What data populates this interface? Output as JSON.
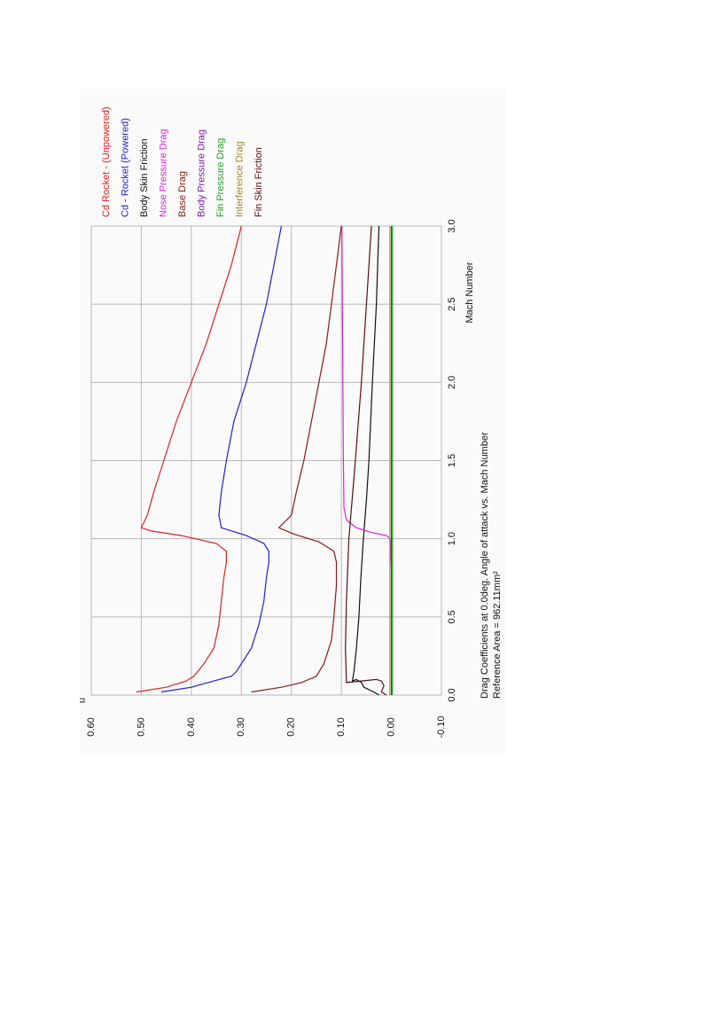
{
  "chart_data": {
    "type": "line",
    "title": "Drag Coefficients at 0.0deg. Angle of attack vs. Mach Number",
    "subtitle": "Reference Area =   962.11mm²",
    "xlabel": "Mach Number",
    "ylabel": "",
    "xlim": [
      0.0,
      3.0
    ],
    "ylim": [
      -0.1,
      0.6
    ],
    "x_ticks": [
      "0.0",
      "0.5",
      "1.0",
      "1.5",
      "2.0",
      "2.5",
      "3.0"
    ],
    "y_ticks": [
      "0.60",
      "0.50",
      "0.40",
      "0.30",
      "0.20",
      "0.10",
      "0.00",
      "-0.10"
    ],
    "grid": true,
    "legend_position": "top",
    "corner_label": "[]",
    "series": [
      {
        "name": "Cd Rocket - (Unpowered)",
        "color": "#e02020",
        "points": [
          [
            0.02,
            0.51
          ],
          [
            0.05,
            0.45
          ],
          [
            0.09,
            0.41
          ],
          [
            0.12,
            0.395
          ],
          [
            0.2,
            0.375
          ],
          [
            0.3,
            0.355
          ],
          [
            0.45,
            0.345
          ],
          [
            0.6,
            0.34
          ],
          [
            0.75,
            0.335
          ],
          [
            0.85,
            0.33
          ],
          [
            0.92,
            0.33
          ],
          [
            0.97,
            0.35
          ],
          [
            1.02,
            0.42
          ],
          [
            1.05,
            0.48
          ],
          [
            1.07,
            0.5
          ],
          [
            1.15,
            0.488
          ],
          [
            1.3,
            0.475
          ],
          [
            1.5,
            0.455
          ],
          [
            1.75,
            0.43
          ],
          [
            2.0,
            0.4
          ],
          [
            2.25,
            0.37
          ],
          [
            2.5,
            0.345
          ],
          [
            2.75,
            0.32
          ],
          [
            3.0,
            0.3
          ]
        ]
      },
      {
        "name": "Cd - Rocket (Powered)",
        "color": "#2020d0",
        "points": [
          [
            0.02,
            0.46
          ],
          [
            0.05,
            0.4
          ],
          [
            0.09,
            0.355
          ],
          [
            0.12,
            0.32
          ],
          [
            0.15,
            0.31
          ],
          [
            0.2,
            0.3
          ],
          [
            0.3,
            0.28
          ],
          [
            0.45,
            0.265
          ],
          [
            0.6,
            0.255
          ],
          [
            0.75,
            0.25
          ],
          [
            0.85,
            0.245
          ],
          [
            0.92,
            0.245
          ],
          [
            0.97,
            0.255
          ],
          [
            1.02,
            0.29
          ],
          [
            1.07,
            0.34
          ],
          [
            1.15,
            0.345
          ],
          [
            1.3,
            0.34
          ],
          [
            1.5,
            0.33
          ],
          [
            1.75,
            0.315
          ],
          [
            2.0,
            0.29
          ],
          [
            2.25,
            0.27
          ],
          [
            2.5,
            0.25
          ],
          [
            2.75,
            0.235
          ],
          [
            3.0,
            0.22
          ]
        ]
      },
      {
        "name": "Body Skin Friction",
        "color": "#111111",
        "points": [
          [
            0.0,
            0.025
          ],
          [
            0.02,
            0.035
          ],
          [
            0.05,
            0.055
          ],
          [
            0.08,
            0.06
          ],
          [
            0.09,
            0.065
          ],
          [
            0.1,
            0.07
          ],
          [
            0.09,
            0.078
          ],
          [
            0.15,
            0.075
          ],
          [
            0.3,
            0.07
          ],
          [
            0.5,
            0.065
          ],
          [
            0.75,
            0.061
          ],
          [
            1.0,
            0.056
          ],
          [
            1.25,
            0.05
          ],
          [
            1.5,
            0.045
          ],
          [
            2.0,
            0.038
          ],
          [
            2.5,
            0.03
          ],
          [
            3.0,
            0.025
          ]
        ]
      },
      {
        "name": "Nose Pressure Drag",
        "color": "#e020e0",
        "points": [
          [
            0.8,
            0.0
          ],
          [
            1.0,
            0.002
          ],
          [
            1.02,
            0.01
          ],
          [
            1.04,
            0.04
          ],
          [
            1.07,
            0.07
          ],
          [
            1.12,
            0.09
          ],
          [
            1.2,
            0.095
          ],
          [
            1.5,
            0.096
          ],
          [
            2.0,
            0.097
          ],
          [
            2.5,
            0.098
          ],
          [
            3.0,
            0.099
          ]
        ]
      },
      {
        "name": "Base Drag",
        "color": "#8b1a1a",
        "points": [
          [
            0.02,
            0.28
          ],
          [
            0.05,
            0.22
          ],
          [
            0.08,
            0.18
          ],
          [
            0.12,
            0.15
          ],
          [
            0.2,
            0.135
          ],
          [
            0.35,
            0.12
          ],
          [
            0.5,
            0.115
          ],
          [
            0.7,
            0.11
          ],
          [
            0.85,
            0.11
          ],
          [
            0.92,
            0.115
          ],
          [
            0.98,
            0.145
          ],
          [
            1.03,
            0.195
          ],
          [
            1.07,
            0.225
          ],
          [
            1.15,
            0.2
          ],
          [
            1.3,
            0.19
          ],
          [
            1.5,
            0.175
          ],
          [
            1.75,
            0.16
          ],
          [
            2.0,
            0.145
          ],
          [
            2.25,
            0.13
          ],
          [
            2.5,
            0.12
          ],
          [
            2.75,
            0.11
          ],
          [
            3.0,
            0.1
          ]
        ]
      },
      {
        "name": "Body Pressure Drag",
        "color": "#7a1aa0",
        "points": [
          [
            0.0,
            0.0
          ],
          [
            1.0,
            0.0
          ],
          [
            1.2,
            0.0
          ],
          [
            3.0,
            0.0
          ]
        ]
      },
      {
        "name": "Fin Pressure Drag",
        "color": "#20a020",
        "points": [
          [
            0.0,
            -0.002
          ],
          [
            0.5,
            -0.002
          ],
          [
            1.0,
            -0.002
          ],
          [
            1.5,
            -0.002
          ],
          [
            2.0,
            -0.002
          ],
          [
            3.0,
            -0.002
          ]
        ]
      },
      {
        "name": "Interference Drag",
        "color": "#9a8a20",
        "points": [
          [
            0.0,
            0.003
          ],
          [
            0.5,
            0.003
          ],
          [
            1.0,
            0.003
          ],
          [
            2.0,
            0.003
          ],
          [
            3.0,
            0.003
          ]
        ]
      },
      {
        "name": "Fin Skin Friction",
        "color": "#5a1010",
        "points": [
          [
            0.0,
            0.01
          ],
          [
            0.02,
            0.02
          ],
          [
            0.06,
            0.015
          ],
          [
            0.09,
            0.02
          ],
          [
            0.1,
            0.03
          ],
          [
            0.08,
            0.09
          ],
          [
            0.3,
            0.092
          ],
          [
            0.6,
            0.09
          ],
          [
            1.0,
            0.085
          ],
          [
            1.5,
            0.072
          ],
          [
            2.0,
            0.06
          ],
          [
            2.5,
            0.05
          ],
          [
            3.0,
            0.04
          ]
        ]
      }
    ]
  }
}
